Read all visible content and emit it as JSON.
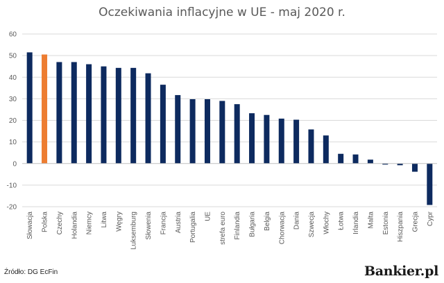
{
  "chart_data": {
    "type": "bar",
    "title": "Oczekiwania inflacyjne w UE - maj 2020 r.",
    "xlabel": "",
    "ylabel": "",
    "ylim": [
      -20,
      60
    ],
    "yticks": [
      60,
      50,
      40,
      30,
      20,
      10,
      0,
      -10,
      -20
    ],
    "grid": true,
    "categories": [
      "Słowacja",
      "Polska",
      "Czechy",
      "Holandia",
      "Niemcy",
      "Litwa",
      "Węgry",
      "Luksemburg",
      "Słowenia",
      "Francja",
      "Austria",
      "Portugalia",
      "UE",
      "strefa euro",
      "Finlandia",
      "Bułgaria",
      "Belgia",
      "Chorwacja",
      "Dania",
      "Szwecja",
      "Włochy",
      "Łotwa",
      "Irlandia",
      "Malta",
      "Estonia",
      "Hiszpania",
      "Grecja",
      "Cypr"
    ],
    "values": [
      51.5,
      50.5,
      47,
      47,
      46,
      45,
      44.3,
      44.3,
      41.8,
      36.5,
      31.7,
      29.8,
      29.8,
      29,
      27.5,
      23.3,
      22.5,
      20.8,
      20.3,
      15.8,
      13,
      4.5,
      4.2,
      1.8,
      -0.5,
      -0.8,
      -3.8,
      -19.2
    ],
    "colors": {
      "default": "#0d2a5f",
      "highlight": "#ed7d31",
      "grid": "#d9d9d9",
      "axis": "#bfbfbf"
    },
    "highlight_index": 1
  },
  "footer": {
    "source": "Źródło: DG EcFin",
    "brand": "Bankier.pl"
  }
}
